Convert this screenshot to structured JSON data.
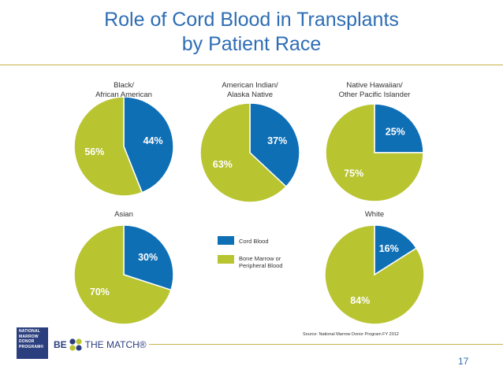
{
  "slide": {
    "title_line1": "Role of Cord Blood in Transplants",
    "title_line2": "by Patient Race",
    "page_number": "17"
  },
  "colors": {
    "cord_blood": "#0f6fb5",
    "bone_marrow": "#b8c430",
    "title_blue": "#2e6db4",
    "rule_gold": "#c8b24a"
  },
  "chart_data": [
    {
      "type": "pie",
      "title_lines": [
        "Black/",
        "African American"
      ],
      "slices": [
        {
          "label": "Cord Blood",
          "value": 44,
          "display": "44%"
        },
        {
          "label": "Bone Marrow or Peripheral Blood",
          "value": 56,
          "display": "56%"
        }
      ]
    },
    {
      "type": "pie",
      "title_lines": [
        "American Indian/",
        "Alaska Native"
      ],
      "slices": [
        {
          "label": "Cord Blood",
          "value": 37,
          "display": "37%"
        },
        {
          "label": "Bone Marrow or Peripheral Blood",
          "value": 63,
          "display": "63%"
        }
      ]
    },
    {
      "type": "pie",
      "title_lines": [
        "Native Hawaiian/",
        "Other Pacific Islander"
      ],
      "slices": [
        {
          "label": "Cord Blood",
          "value": 25,
          "display": "25%"
        },
        {
          "label": "Bone Marrow or Peripheral Blood",
          "value": 75,
          "display": "75%"
        }
      ]
    },
    {
      "type": "pie",
      "title_lines": [
        "Asian"
      ],
      "slices": [
        {
          "label": "Cord Blood",
          "value": 30,
          "display": "30%"
        },
        {
          "label": "Bone Marrow or Peripheral Blood",
          "value": 70,
          "display": "70%"
        }
      ]
    },
    {
      "type": "pie",
      "title_lines": [
        "White"
      ],
      "slices": [
        {
          "label": "Cord Blood",
          "value": 16,
          "display": "16%"
        },
        {
          "label": "Bone Marrow or Peripheral Blood",
          "value": 84,
          "display": "84%"
        }
      ]
    }
  ],
  "legend": {
    "items": [
      {
        "label_lines": [
          "Cord Blood"
        ]
      },
      {
        "label_lines": [
          "Bone Marrow or",
          "Peripheral Blood"
        ]
      }
    ]
  },
  "source_note": "Source: National Marrow Donor Program FY 2012",
  "logos": {
    "nmdp_lines": [
      "NATIONAL",
      "MARROW",
      "DONOR",
      "PROGRAM®"
    ],
    "btm_be": "BE",
    "btm_rest": "THE MATCH®"
  }
}
